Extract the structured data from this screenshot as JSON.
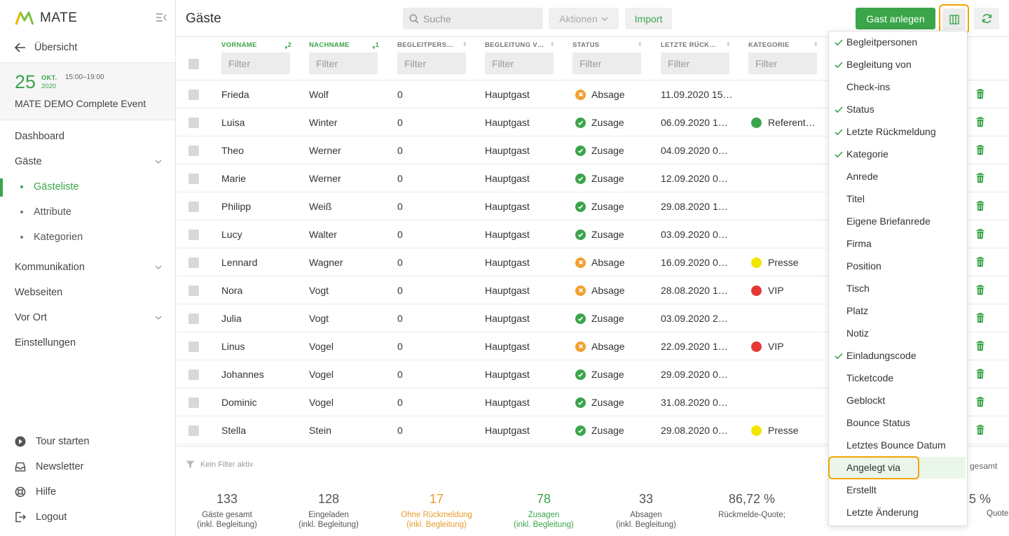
{
  "app": {
    "name": "MATE"
  },
  "sidebar": {
    "back_label": "Übersicht",
    "event": {
      "day": "25",
      "month": "OKT.",
      "year": "2020",
      "time": "15:00–19:00",
      "title": "MATE DEMO Complete Event"
    },
    "nav": [
      {
        "label": "Dashboard"
      },
      {
        "label": "Gäste"
      },
      {
        "label": "Kommunikation"
      },
      {
        "label": "Webseiten"
      },
      {
        "label": "Vor Ort"
      },
      {
        "label": "Einstellungen"
      }
    ],
    "sub": [
      {
        "label": "Gästeliste",
        "active": true
      },
      {
        "label": "Attribute"
      },
      {
        "label": "Kategorien"
      }
    ],
    "footer": [
      {
        "label": "Tour starten",
        "icon": "play-icon"
      },
      {
        "label": "Newsletter",
        "icon": "inbox-icon"
      },
      {
        "label": "Hilfe",
        "icon": "lifebuoy-icon"
      },
      {
        "label": "Logout",
        "icon": "logout-icon"
      }
    ]
  },
  "header": {
    "title": "Gäste",
    "search_placeholder": "Suche",
    "actions_label": "Aktionen",
    "import_label": "Import",
    "add_guest_label": "Gast anlegen"
  },
  "table": {
    "columns": [
      {
        "label": "VORNAME",
        "sort": "2"
      },
      {
        "label": "NACHNAME",
        "sort": "1"
      },
      {
        "label": "BEGLEITPERS…"
      },
      {
        "label": "BEGLEITUNG V…"
      },
      {
        "label": "STATUS"
      },
      {
        "label": "LETZTE RÜCK…"
      },
      {
        "label": "KATEGORIE"
      }
    ],
    "filter_placeholder": "Filter",
    "rows": [
      {
        "first": "Frieda",
        "last": "Wolf",
        "companions": "0",
        "companion_of": "Hauptgast",
        "status": "Absage",
        "status_type": "no",
        "last_reply": "11.09.2020 15…",
        "category": "",
        "cat_color": ""
      },
      {
        "first": "Luisa",
        "last": "Winter",
        "companions": "0",
        "companion_of": "Hauptgast",
        "status": "Zusage",
        "status_type": "ok",
        "last_reply": "06.09.2020 1…",
        "category": "Referent…",
        "cat_color": "#3aa54a"
      },
      {
        "first": "Theo",
        "last": "Werner",
        "companions": "0",
        "companion_of": "Hauptgast",
        "status": "Zusage",
        "status_type": "ok",
        "last_reply": "04.09.2020 0…",
        "category": "",
        "cat_color": ""
      },
      {
        "first": "Marie",
        "last": "Werner",
        "companions": "0",
        "companion_of": "Hauptgast",
        "status": "Zusage",
        "status_type": "ok",
        "last_reply": "12.09.2020 0…",
        "category": "",
        "cat_color": ""
      },
      {
        "first": "Philipp",
        "last": "Weiß",
        "companions": "0",
        "companion_of": "Hauptgast",
        "status": "Zusage",
        "status_type": "ok",
        "last_reply": "29.08.2020 1…",
        "category": "",
        "cat_color": ""
      },
      {
        "first": "Lucy",
        "last": "Walter",
        "companions": "0",
        "companion_of": "Hauptgast",
        "status": "Zusage",
        "status_type": "ok",
        "last_reply": "03.09.2020 0…",
        "category": "",
        "cat_color": ""
      },
      {
        "first": "Lennard",
        "last": "Wagner",
        "companions": "0",
        "companion_of": "Hauptgast",
        "status": "Absage",
        "status_type": "no",
        "last_reply": "16.09.2020 0…",
        "category": "Presse",
        "cat_color": "#f2e600"
      },
      {
        "first": "Nora",
        "last": "Vogt",
        "companions": "0",
        "companion_of": "Hauptgast",
        "status": "Absage",
        "status_type": "no",
        "last_reply": "28.08.2020 1…",
        "category": "VIP",
        "cat_color": "#e53935"
      },
      {
        "first": "Julia",
        "last": "Vogt",
        "companions": "0",
        "companion_of": "Hauptgast",
        "status": "Zusage",
        "status_type": "ok",
        "last_reply": "03.09.2020 2…",
        "category": "",
        "cat_color": ""
      },
      {
        "first": "Linus",
        "last": "Vogel",
        "companions": "0",
        "companion_of": "Hauptgast",
        "status": "Absage",
        "status_type": "no",
        "last_reply": "22.09.2020 1…",
        "category": "VIP",
        "cat_color": "#e53935"
      },
      {
        "first": "Johannes",
        "last": "Vogel",
        "companions": "0",
        "companion_of": "Hauptgast",
        "status": "Zusage",
        "status_type": "ok",
        "last_reply": "29.09.2020 0…",
        "category": "",
        "cat_color": ""
      },
      {
        "first": "Dominic",
        "last": "Vogel",
        "companions": "0",
        "companion_of": "Hauptgast",
        "status": "Zusage",
        "status_type": "ok",
        "last_reply": "31.08.2020 0…",
        "category": "",
        "cat_color": ""
      },
      {
        "first": "Stella",
        "last": "Stein",
        "companions": "0",
        "companion_of": "Hauptgast",
        "status": "Zusage",
        "status_type": "ok",
        "last_reply": "29.08.2020 0…",
        "category": "Presse",
        "cat_color": "#f2e600"
      }
    ]
  },
  "column_menu": [
    {
      "label": "Begleitpersonen",
      "checked": true
    },
    {
      "label": "Begleitung von",
      "checked": true
    },
    {
      "label": "Check-ins",
      "checked": false
    },
    {
      "label": "Status",
      "checked": true
    },
    {
      "label": "Letzte Rückmeldung",
      "checked": true
    },
    {
      "label": "Kategorie",
      "checked": true
    },
    {
      "label": "Anrede",
      "checked": false
    },
    {
      "label": "Titel",
      "checked": false
    },
    {
      "label": "Eigene Briefanrede",
      "checked": false
    },
    {
      "label": "Firma",
      "checked": false
    },
    {
      "label": "Position",
      "checked": false
    },
    {
      "label": "Tisch",
      "checked": false
    },
    {
      "label": "Platz",
      "checked": false
    },
    {
      "label": "Notiz",
      "checked": false
    },
    {
      "label": "Einladungscode",
      "checked": true
    },
    {
      "label": "Ticketcode",
      "checked": false
    },
    {
      "label": "Geblockt",
      "checked": false
    },
    {
      "label": "Bounce Status",
      "checked": false
    },
    {
      "label": "Letztes Bounce Datum",
      "checked": false
    },
    {
      "label": "Angelegt via",
      "checked": false,
      "highlighted": true
    },
    {
      "label": "Erstellt",
      "checked": false
    },
    {
      "label": "Letzte Änderung",
      "checked": false
    }
  ],
  "footer": {
    "filter_note": "Kein Filter aktiv",
    "stats": [
      {
        "value": "133",
        "label1": "Gäste gesamt",
        "label2": "(inkl. Begleitung)",
        "tone": ""
      },
      {
        "value": "128",
        "label1": "Eingeladen",
        "label2": "(inkl. Begleitung)",
        "tone": ""
      },
      {
        "value": "17",
        "label1": "Ohne Rückmeldung",
        "label2": "(inkl. Begleitung)",
        "tone": "orange"
      },
      {
        "value": "78",
        "label1": "Zusagen",
        "label2": "(inkl. Begleitung)",
        "tone": "green"
      },
      {
        "value": "33",
        "label1": "Absagen",
        "label2": "(inkl. Begleitung)",
        "tone": ""
      },
      {
        "value": "86,72 %",
        "label1": "Rückmelde-Quote;",
        "label2": "",
        "tone": ""
      }
    ],
    "right_gesamt": "gesamt",
    "right_pct": "5 %",
    "right_quote": "Quote"
  },
  "colors": {
    "accent": "#3aa54a",
    "highlight": "#f0a500",
    "warning": "#f0a030"
  }
}
